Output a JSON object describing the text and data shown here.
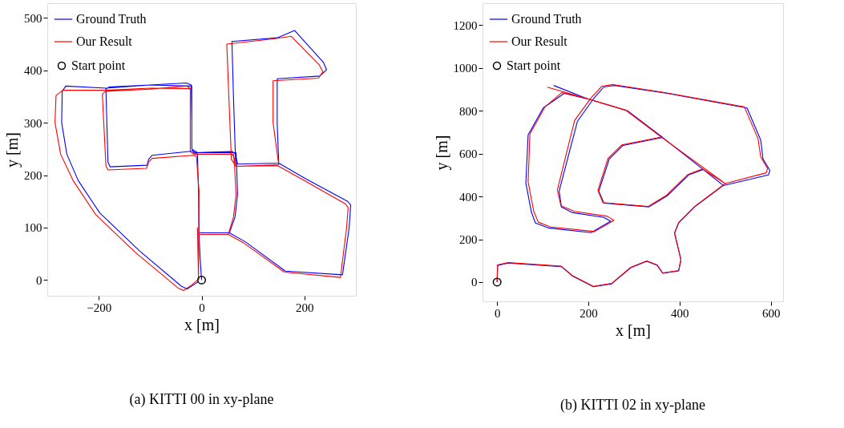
{
  "chart_data": [
    {
      "type": "line",
      "title": "(a) KITTI 00 in xy-plane",
      "xlabel": "x [m]",
      "ylabel": "y [m]",
      "xlim": [
        -300,
        300
      ],
      "ylim": [
        -30,
        528
      ],
      "xticks": [
        -200,
        0,
        200
      ],
      "yticks": [
        0,
        100,
        200,
        300,
        400,
        500
      ],
      "legend": "top left",
      "series": [
        {
          "name": "Ground Truth",
          "color": "#0000ff",
          "x": [
            0,
            -3,
            -5,
            -6,
            -8,
            -17,
            -96,
            -103,
            -106,
            -178,
            -182,
            -186,
            -180,
            -100,
            -30,
            -20,
            -19,
            -19,
            -15,
            60,
            66,
            70,
            150,
            147,
            147,
            230,
            243,
            237,
            181,
            147,
            59,
            62,
            66,
            70,
            150,
            201,
            284,
            290,
            287,
            274,
            163,
            85,
            54,
            -3,
            54,
            65,
            70,
            68,
            67,
            -8,
            -19,
            -19,
            -100,
            -186,
            -264,
            -271,
            -272,
            -262,
            -240,
            -198,
            -120,
            -39,
            -28,
            -6
          ],
          "values": [
            0,
            45,
            90,
            170,
            240,
            246,
            238,
            230,
            219,
            216,
            225,
            364,
            368,
            372,
            376,
            372,
            300,
            250,
            243,
            245,
            240,
            221,
            223,
            300,
            384,
            389,
            401,
            415,
            476,
            462,
            455,
            350,
            230,
            221,
            223,
            194,
            150,
            143,
            100,
            10,
            17,
            73,
            90,
            90,
            90,
            120,
            163,
            221,
            243,
            243,
            250,
            370,
            372,
            366,
            370,
            360,
            300,
            240,
            190,
            128,
            55,
            -12,
            -17,
            -3
          ]
        },
        {
          "name": "Our Result",
          "color": "#ff0000",
          "x": [
            -8,
            -7,
            -6,
            -5,
            -10,
            -17,
            -96,
            -103,
            -107,
            -182,
            -186,
            -193,
            -186,
            -100,
            -30,
            -22,
            -22,
            -22,
            -15,
            60,
            64,
            67,
            150,
            139,
            139,
            227,
            236,
            229,
            174,
            140,
            49,
            53,
            58,
            67,
            148,
            199,
            280,
            285,
            282,
            270,
            161,
            83,
            52,
            -4,
            52,
            62,
            67,
            64,
            62,
            -12,
            -22,
            -22,
            -100,
            -186,
            -270,
            -283,
            -285,
            -274,
            -250,
            -206,
            -128,
            -46,
            -35,
            -20,
            -4
          ],
          "values": [
            100,
            50,
            5,
            170,
            236,
            238,
            232,
            225,
            213,
            210,
            218,
            355,
            360,
            364,
            370,
            366,
            300,
            245,
            240,
            240,
            232,
            217,
            220,
            300,
            380,
            385,
            397,
            410,
            465,
            460,
            450,
            350,
            230,
            217,
            218,
            190,
            145,
            138,
            100,
            5,
            15,
            70,
            87,
            87,
            87,
            120,
            163,
            221,
            240,
            240,
            245,
            365,
            366,
            362,
            362,
            352,
            300,
            240,
            190,
            125,
            52,
            -15,
            -20,
            -10,
            3
          ]
        },
        {
          "name": "Start point",
          "type": "scatter",
          "marker": "circle",
          "color": "#000000",
          "x": [
            0
          ],
          "values": [
            0
          ]
        }
      ]
    },
    {
      "type": "line",
      "title": "(b) KITTI 02 in xy-plane",
      "xlabel": "x [m]",
      "ylabel": "y [m]",
      "xlim": [
        -32,
        627
      ],
      "ylim": [
        -90,
        1302
      ],
      "xticks": [
        0,
        200,
        400,
        600
      ],
      "yticks": [
        0,
        200,
        400,
        600,
        800,
        1000,
        1200
      ],
      "legend": "top left",
      "series": [
        {
          "name": "Ground Truth",
          "color": "#0000ff",
          "x": [
            0,
            1,
            24,
            141,
            164,
            211,
            251,
            293,
            328,
            351,
            363,
            398,
            403,
            389,
            398,
            433,
            496,
            595,
            598,
            583,
            578,
            548,
            373,
            258,
            234,
            211,
            176,
            136,
            141,
            164,
            234,
            249,
            206,
            112,
            84,
            75,
            63,
            68,
            101,
            147,
            199,
            286,
            363,
            276,
            246,
            223,
            234,
            333,
            373,
            420,
            452,
            496,
            363,
            286,
            199,
            124
          ],
          "values": [
            0,
            78,
            89,
            72,
            30,
            -22,
            -8,
            67,
            97,
            78,
            41,
            52,
            104,
            228,
            276,
            351,
            451,
            500,
            522,
            575,
            663,
            813,
            881,
            918,
            911,
            855,
            750,
            425,
            351,
            325,
            302,
            284,
            231,
            253,
            276,
            328,
            463,
            687,
            813,
            881,
            855,
            800,
            675,
            638,
            575,
            425,
            369,
            351,
            403,
            500,
            526,
            451,
            675,
            800,
            855,
            918
          ]
        },
        {
          "name": "Our Result",
          "color": "#ff0000",
          "x": [
            0,
            1,
            24,
            141,
            164,
            211,
            251,
            293,
            328,
            351,
            363,
            398,
            403,
            389,
            398,
            433,
            500,
            590,
            593,
            578,
            572,
            542,
            368,
            254,
            230,
            206,
            170,
            132,
            140,
            170,
            242,
            256,
            214,
            116,
            90,
            80,
            68,
            72,
            105,
            142,
            195,
            282,
            360,
            273,
            243,
            221,
            232,
            331,
            371,
            418,
            450,
            500,
            360,
            283,
            196,
            110
          ],
          "values": [
            0,
            80,
            91,
            74,
            32,
            -20,
            -6,
            69,
            99,
            80,
            43,
            54,
            106,
            230,
            278,
            353,
            460,
            510,
            530,
            585,
            670,
            818,
            885,
            922,
            915,
            860,
            755,
            430,
            356,
            330,
            307,
            288,
            236,
            258,
            280,
            333,
            468,
            692,
            818,
            885,
            858,
            802,
            677,
            640,
            577,
            428,
            371,
            353,
            405,
            502,
            528,
            460,
            677,
            802,
            858,
            910
          ]
        },
        {
          "name": "Start point",
          "type": "scatter",
          "marker": "circle",
          "color": "#000000",
          "x": [
            0
          ],
          "values": [
            0
          ]
        }
      ]
    }
  ]
}
